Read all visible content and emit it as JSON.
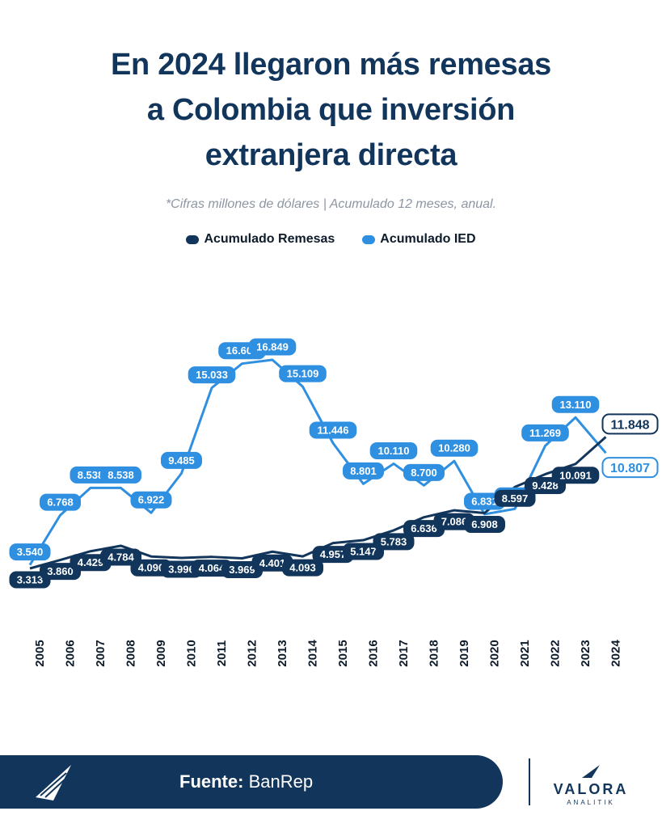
{
  "header": {
    "title_lines": [
      "En 2024 llegaron más remesas",
      "a Colombia que inversión",
      "extranjera directa"
    ],
    "subtitle": "*Cifras millones de dólares | Acumulado 12 meses, anual."
  },
  "colors": {
    "remesas": "#12355b",
    "ied": "#2f8fe0",
    "title": "#12355b"
  },
  "chart_data": {
    "type": "line",
    "x": [
      "2005",
      "2006",
      "2007",
      "2008",
      "2009",
      "2010",
      "2011",
      "2012",
      "2013",
      "2014",
      "2015",
      "2016",
      "2017",
      "2018",
      "2019",
      "2020",
      "2021",
      "2022",
      "2023",
      "2024"
    ],
    "series": [
      {
        "name": "Acumulado Remesas",
        "values": [
          3313,
          3860,
          4429,
          4784,
          4090,
          3996,
          4064,
          3969,
          4401,
          4093,
          4957,
          5147,
          5783,
          6636,
          7086,
          6908,
          8597,
          9428,
          10091,
          11848
        ],
        "labels": [
          "3.313",
          "3.860",
          "4.429",
          "4.784",
          "4.090",
          "3.996",
          "4.064",
          "3.969",
          "4.401",
          "4.093",
          "4.957",
          "5.147",
          "5.783",
          "6.636",
          "7.086",
          "6.908",
          "8.597",
          "9.428",
          "10.091",
          "11.848"
        ]
      },
      {
        "name": "Acumulado IED",
        "values": [
          3540,
          6768,
          8538,
          8538,
          6922,
          9485,
          15033,
          16603,
          16849,
          15109,
          11446,
          8801,
          10110,
          8700,
          10280,
          6831,
          7180,
          11269,
          13110,
          10807
        ],
        "labels": [
          "3.540",
          "6.768",
          "8.538",
          "8.538",
          "6.922",
          "9.485",
          "15.033",
          "16.603",
          "16.849",
          "15.109",
          "11.446",
          "8.801",
          "10.110",
          "8.700",
          "10.280",
          "6.831",
          "7.180",
          "11.269",
          "13.110",
          "10.807"
        ]
      }
    ],
    "legend": [
      "Acumulado Remesas",
      "Acumulado IED"
    ],
    "ylim": [
      2000,
      18000
    ]
  },
  "footer": {
    "source_label": "Fuente:",
    "source_value": "BanRep",
    "brand": "VALORA",
    "brand_sub": "ANALITIK"
  }
}
